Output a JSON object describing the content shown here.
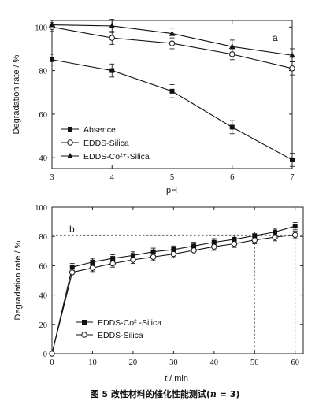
{
  "chart_data": [
    {
      "type": "line",
      "panel_label": "a",
      "xlabel": "pH",
      "ylabel": "Degradation rate / %",
      "x": [
        3,
        4,
        5,
        6,
        7
      ],
      "xticks": [
        "3",
        "4",
        "5",
        "6",
        "7"
      ],
      "yticks": [
        "40",
        "60",
        "80",
        "100"
      ],
      "xlim": [
        3,
        7
      ],
      "ylim": [
        35,
        103
      ],
      "grid": false,
      "legend_position": "bottom-left",
      "series": [
        {
          "name": "Absence",
          "legend_label": "Absence",
          "marker": "square",
          "color": "#111111",
          "values": [
            85,
            80,
            70.5,
            54,
            39
          ],
          "errors": [
            2.5,
            3,
            3,
            3,
            3
          ]
        },
        {
          "name": "EDDS-Silica",
          "legend_label": "EDDS-Silica",
          "marker": "circle-open",
          "color": "#111111",
          "values": [
            100,
            95,
            92.5,
            87.5,
            81
          ],
          "errors": [
            2,
            3,
            2.5,
            2.5,
            3
          ]
        },
        {
          "name": "EDDS-Co²⁺-Silica",
          "legend_label": "EDDS-Co²⁺-Silica",
          "marker": "triangle",
          "color": "#111111",
          "values": [
            101,
            100.5,
            97,
            91,
            87
          ],
          "errors": [
            2,
            3,
            2.5,
            3,
            3
          ]
        }
      ]
    },
    {
      "type": "line",
      "panel_label": "b",
      "xlabel_italic": "t",
      "xlabel_rest": " / min",
      "ylabel": "Degradation rate / %",
      "xticks": [
        "0",
        "10",
        "20",
        "30",
        "40",
        "50",
        "60"
      ],
      "yticks": [
        "0",
        "20",
        "40",
        "60",
        "80",
        "100"
      ],
      "xlim": [
        0,
        62
      ],
      "ylim": [
        0,
        100
      ],
      "grid": false,
      "legend_position": "bottom-center",
      "reference": {
        "y": 81,
        "x_markers": [
          50,
          60
        ]
      },
      "series": [
        {
          "name": "EDDS-Co²⁺-Silica",
          "legend_label": "EDDS-Co² -Silica",
          "marker": "square",
          "color": "#111111",
          "x": [
            0,
            5,
            10,
            15,
            20,
            25,
            30,
            35,
            40,
            45,
            50,
            55,
            60
          ],
          "values": [
            0,
            59,
            62.5,
            65,
            67,
            69.5,
            71,
            73.5,
            76,
            78,
            80.5,
            83,
            87
          ],
          "errors": [
            0,
            2.5,
            2.5,
            2.5,
            2.5,
            2.5,
            2.5,
            2.5,
            2.5,
            2.5,
            2.5,
            2.5,
            2.5
          ]
        },
        {
          "name": "EDDS-Silica",
          "legend_label": "EDDS-Silica",
          "marker": "circle-open",
          "color": "#111111",
          "x": [
            0,
            5,
            10,
            15,
            20,
            25,
            30,
            35,
            40,
            45,
            50,
            55,
            60
          ],
          "values": [
            0,
            55.5,
            58.5,
            61.5,
            64,
            66,
            68,
            70.5,
            73,
            75,
            77.5,
            79.5,
            81
          ],
          "errors": [
            0,
            2.5,
            2.5,
            2.5,
            2.5,
            2.5,
            2.5,
            2.5,
            2.5,
            2.5,
            2.5,
            2.5,
            2.5
          ]
        }
      ]
    }
  ],
  "caption": {
    "prefix": "图 5   改性材料的催化性能测试(",
    "n_symbol": "n",
    "suffix": " = 3)"
  }
}
